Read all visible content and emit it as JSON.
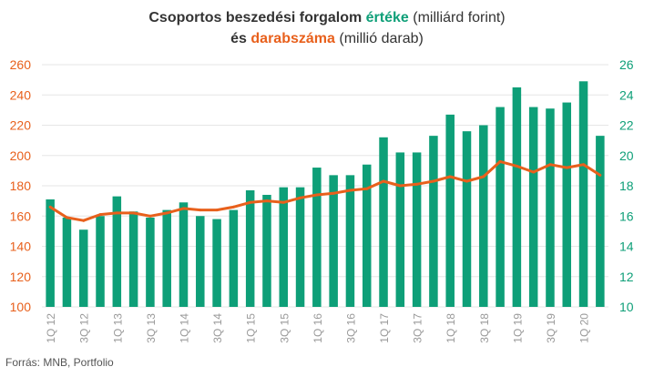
{
  "title": {
    "line1_bold": "Csoportos beszedési forgalom",
    "line1_highlight": "értéke",
    "line1_plain": "(milliárd forint)",
    "line2_bold": "és",
    "line2_highlight": "darabszáma",
    "line2_plain": "(millió darab)"
  },
  "source": "Forrás: MNB, Portfolio",
  "colors": {
    "bar": "#0e9f78",
    "line": "#e8601c",
    "left_axis": "#e8601c",
    "right_axis": "#0e9f78",
    "grid": "#e6e6e6",
    "xlabel": "#999999"
  },
  "chart_data": {
    "type": "bar",
    "categories": [
      "1Q 12",
      "2Q 12",
      "3Q 12",
      "4Q 12",
      "1Q 13",
      "2Q 13",
      "3Q 13",
      "4Q 13",
      "1Q 14",
      "2Q 14",
      "3Q 14",
      "4Q 14",
      "1Q 15",
      "2Q 15",
      "3Q 15",
      "4Q 15",
      "1Q 16",
      "2Q 16",
      "3Q 16",
      "4Q 16",
      "1Q 17",
      "2Q 17",
      "3Q 17",
      "4Q 17",
      "1Q 18",
      "2Q 18",
      "3Q 18",
      "4Q 18",
      "1Q 19",
      "2Q 19",
      "3Q 19",
      "4Q 19",
      "1Q 20",
      "2Q 20"
    ],
    "tick_labels": [
      "1Q 12",
      "",
      "3Q 12",
      "",
      "1Q 13",
      "",
      "3Q 13",
      "",
      "1Q 14",
      "",
      "3Q 14",
      "",
      "1Q 15",
      "",
      "3Q 15",
      "",
      "1Q 16",
      "",
      "3Q 16",
      "",
      "1Q 17",
      "",
      "3Q 17",
      "",
      "1Q 18",
      "",
      "3Q 18",
      "",
      "1Q 19",
      "",
      "3Q 19",
      "",
      "1Q 20",
      ""
    ],
    "series": [
      {
        "axis": "left",
        "kind": "bar",
        "values": [
          171,
          159,
          151,
          160,
          173,
          163,
          159,
          164,
          169,
          160,
          158,
          164,
          177,
          174,
          179,
          179,
          192,
          187,
          187,
          194,
          212,
          202,
          202,
          213,
          227,
          216,
          220,
          232,
          245,
          232,
          231,
          235,
          249,
          213
        ]
      },
      {
        "axis": "right",
        "kind": "line",
        "values": [
          16.6,
          15.9,
          15.7,
          16.1,
          16.2,
          16.2,
          16.0,
          16.2,
          16.5,
          16.4,
          16.4,
          16.6,
          16.9,
          17.0,
          16.9,
          17.2,
          17.4,
          17.5,
          17.7,
          17.8,
          18.3,
          18.0,
          18.1,
          18.3,
          18.6,
          18.3,
          18.6,
          19.6,
          19.3,
          18.9,
          19.4,
          19.2,
          19.4,
          18.7
        ]
      }
    ],
    "y_left": {
      "min": 100,
      "max": 260,
      "ticks": [
        100,
        120,
        140,
        160,
        180,
        200,
        220,
        240,
        260
      ]
    },
    "y_right": {
      "min": 10,
      "max": 26,
      "ticks": [
        10,
        12,
        14,
        16,
        18,
        20,
        22,
        24,
        26
      ]
    },
    "grid": true
  }
}
